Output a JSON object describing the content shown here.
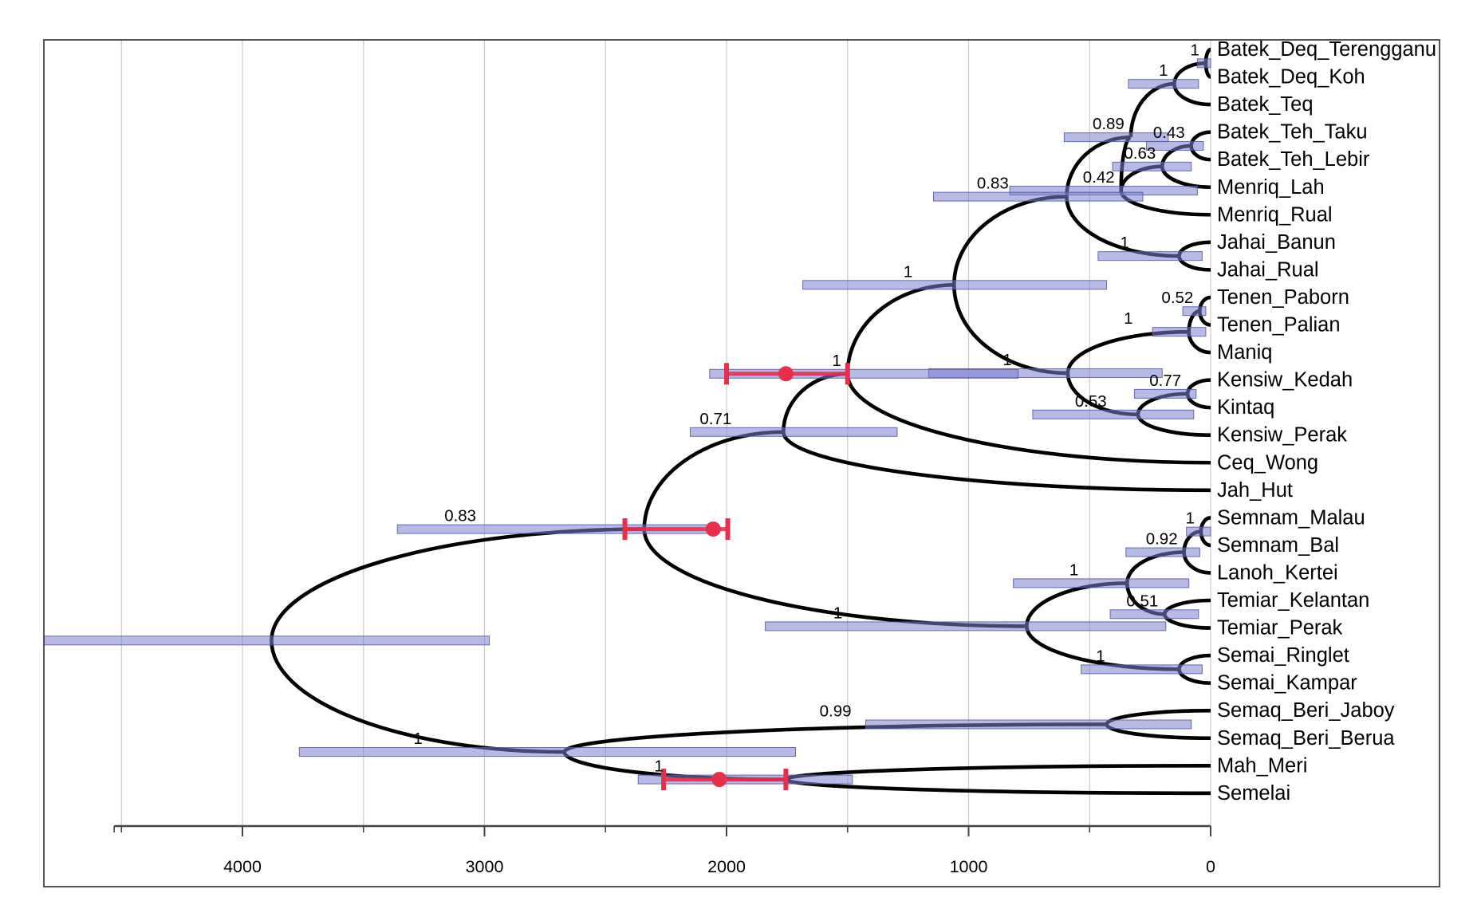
{
  "figure": {
    "description": "Bayesian dated phylogeny (chronogram) of Aslian language varieties with posterior support values, node-age HPD bars and red calibration intervals",
    "background": "#ffffff"
  },
  "chart_data": {
    "type": "tree-chronogram",
    "time_axis": {
      "unit": "years before present",
      "tick_labels": [
        "4000",
        "3000",
        "2000",
        "1000",
        "0"
      ],
      "tick_values": [
        4000,
        3000,
        2000,
        1000,
        0
      ],
      "minor_tick_values": [
        4500,
        3500,
        2500,
        1500,
        500
      ],
      "range": [
        4530,
        0
      ],
      "gridline_values": [
        4500,
        4000,
        3500,
        3000,
        2500,
        2000,
        1500,
        1000,
        500,
        0
      ]
    },
    "colors": {
      "branch": "#000000",
      "hpd_bar_fill": "rgba(124,129,205,0.55)",
      "hpd_bar_stroke": "rgba(80,86,160,0.85)",
      "calibration_red": "#e62e4d",
      "gridline": "#cbcbcb",
      "frame": "#2b2b2b",
      "text": "#000000"
    },
    "tips_order": [
      "Batek_Deq_Terengganu",
      "Batek_Deq_Koh",
      "Batek_Teq",
      "Batek_Teh_Taku",
      "Batek_Teh_Lebir",
      "Menriq_Lah",
      "Menriq_Rual",
      "Jahai_Banun",
      "Jahai_Rual",
      "Tenen_Paborn",
      "Tenen_Palian",
      "Maniq",
      "Kensiw_Kedah",
      "Kintaq",
      "Kensiw_Perak",
      "Ceq_Wong",
      "Jah_Hut",
      "Semnam_Malau",
      "Semnam_Bal",
      "Lanoh_Kertei",
      "Temiar_Kelantan",
      "Temiar_Perak",
      "Semai_Ringlet",
      "Semai_Kampar",
      "Semaq_Beri_Jaboy",
      "Semaq_Beri_Berua",
      "Mah_Meri",
      "Semelai"
    ],
    "tree": {
      "age": 3880,
      "hpd": [
        4820,
        2980
      ],
      "children": [
        {
          "support": "0.83",
          "age": 2340,
          "hpd": [
            3360,
            2075
          ],
          "label_age": 3100,
          "calibration": {
            "range": [
              2420,
              1995
            ],
            "dot": 2055
          },
          "children": [
            {
              "support": "0.71",
              "age": 1765,
              "hpd": [
                2150,
                1295
              ],
              "label_age": 2045,
              "children": [
                {
                  "support": "1",
                  "age": 1500,
                  "hpd": [
                    2070,
                    795
                  ],
                  "calibration": {
                    "range": [
                      2000,
                      1500
                    ],
                    "dot": 1755
                  },
                  "children": [
                    {
                      "support": "1",
                      "age": 1060,
                      "hpd": [
                        1685,
                        430
                      ],
                      "label_age": 1250,
                      "children": [
                        {
                          "support": "0.83",
                          "age": 595,
                          "hpd": [
                            1145,
                            280
                          ],
                          "label_age": 900,
                          "children": [
                            {
                              "support": "0.89",
                              "age": 330,
                              "hpd": [
                                605,
                                175
                              ],
                              "children": [
                                {
                                  "support": "1",
                                  "age": 150,
                                  "hpd": [
                                    340,
                                    50
                                  ],
                                  "children": [
                                    {
                                      "support": "1",
                                      "age": 20,
                                      "hpd": [
                                        55,
                                        0
                                      ],
                                      "children": [
                                        {
                                          "name": "Batek_Deq_Terengganu"
                                        },
                                        {
                                          "name": "Batek_Deq_Koh"
                                        }
                                      ]
                                    },
                                    {
                                      "name": "Batek_Teq"
                                    }
                                  ]
                                },
                                {
                                  "support": "0.42",
                                  "age": 370,
                                  "hpd": [
                                    830,
                                    55
                                  ],
                                  "children": [
                                    {
                                      "support": "0.63",
                                      "age": 200,
                                      "hpd": [
                                        405,
                                        80
                                      ],
                                      "children": [
                                        {
                                          "support": "0.43",
                                          "age": 80,
                                          "hpd": [
                                            265,
                                            30
                                          ],
                                          "children": [
                                            {
                                              "name": "Batek_Teh_Taku"
                                            },
                                            {
                                              "name": "Batek_Teh_Lebir"
                                            }
                                          ]
                                        },
                                        {
                                          "name": "Menriq_Lah"
                                        }
                                      ]
                                    },
                                    {
                                      "name": "Menriq_Rual"
                                    }
                                  ]
                                }
                              ]
                            },
                            {
                              "support": "1",
                              "age": 130,
                              "hpd": [
                                465,
                                35
                              ],
                              "label_age": 355,
                              "children": [
                                {
                                  "name": "Jahai_Banun"
                                },
                                {
                                  "name": "Jahai_Rual"
                                }
                              ]
                            }
                          ]
                        },
                        {
                          "support": "1",
                          "age": 590,
                          "hpd": [
                            1165,
                            200
                          ],
                          "label_age": 840,
                          "children": [
                            {
                              "support": "1",
                              "age": 90,
                              "hpd": [
                                240,
                                20
                              ],
                              "label_age": 340,
                              "children": [
                                {
                                  "support": "0.52",
                                  "age": 45,
                                  "hpd": [
                                    115,
                                    20
                                  ],
                                  "children": [
                                    {
                                      "name": "Tenen_Paborn"
                                    },
                                    {
                                      "name": "Tenen_Palian"
                                    }
                                  ]
                                },
                                {
                                  "name": "Maniq"
                                }
                              ]
                            },
                            {
                              "support": "0.53",
                              "age": 300,
                              "hpd": [
                                735,
                                70
                              ],
                              "label_age": 495,
                              "children": [
                                {
                                  "support": "0.77",
                                  "age": 95,
                                  "hpd": [
                                    315,
                                    60
                                  ],
                                  "children": [
                                    {
                                      "name": "Kensiw_Kedah"
                                    },
                                    {
                                      "name": "Kintaq"
                                    }
                                  ]
                                },
                                {
                                  "name": "Kensiw_Perak"
                                }
                              ]
                            }
                          ]
                        }
                      ]
                    },
                    {
                      "name": "Ceq_Wong"
                    }
                  ]
                },
                {
                  "name": "Jah_Hut"
                }
              ]
            },
            {
              "support": "1",
              "age": 760,
              "hpd": [
                1840,
                185
              ],
              "label_age": 1540,
              "children": [
                {
                  "support": "1",
                  "age": 345,
                  "hpd": [
                    815,
                    90
                  ],
                  "label_age": 565,
                  "children": [
                    {
                      "support": "0.92",
                      "age": 110,
                      "hpd": [
                        350,
                        45
                      ],
                      "children": [
                        {
                          "support": "1",
                          "age": 40,
                          "hpd": [
                            100,
                            0
                          ],
                          "children": [
                            {
                              "name": "Semnam_Malau"
                            },
                            {
                              "name": "Semnam_Bal"
                            }
                          ]
                        },
                        {
                          "name": "Lanoh_Kertei"
                        }
                      ]
                    },
                    {
                      "support": "0.51",
                      "age": 190,
                      "hpd": [
                        415,
                        50
                      ],
                      "children": [
                        {
                          "name": "Temiar_Kelantan"
                        },
                        {
                          "name": "Temiar_Perak"
                        }
                      ]
                    }
                  ]
                },
                {
                  "support": "1",
                  "age": 130,
                  "hpd": [
                    535,
                    35
                  ],
                  "label_age": 455,
                  "children": [
                    {
                      "name": "Semai_Ringlet"
                    },
                    {
                      "name": "Semai_Kampar"
                    }
                  ]
                }
              ]
            }
          ]
        },
        {
          "support": "1",
          "age": 2670,
          "hpd": [
            3765,
            1715
          ],
          "label_age": 3275,
          "children": [
            {
              "support": "0.99",
              "age": 430,
              "hpd": [
                1425,
                80
              ],
              "label_age": 1550,
              "children": [
                {
                  "name": "Semaq_Beri_Jaboy"
                },
                {
                  "name": "Semaq_Beri_Berua"
                }
              ]
            },
            {
              "support": "1",
              "age": 1755,
              "hpd": [
                2365,
                1480
              ],
              "label_age": 2280,
              "calibration": {
                "range": [
                  2260,
                  1755
                ],
                "dot": 2030
              },
              "children": [
                {
                  "name": "Mah_Meri"
                },
                {
                  "name": "Semelai"
                }
              ]
            }
          ]
        }
      ]
    }
  }
}
